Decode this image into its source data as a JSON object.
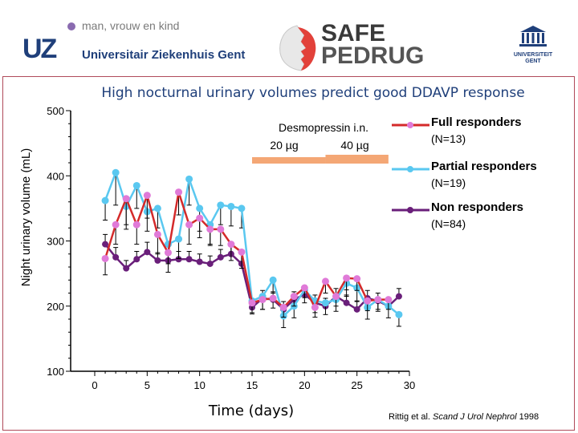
{
  "header": {
    "tagline": "man, vrouw en kind",
    "uz_logo": "UZ",
    "hospital_name": "Universitair Ziekenhuis Gent",
    "safe_logo_line1": "SAFE",
    "safe_logo_line2": "PEDRUG",
    "ugent_line1": "UNIVERSITEIT",
    "ugent_line2": "GENT"
  },
  "citation": {
    "authors": "Rittig et al.",
    "journal": "Scand J Urol Nephrol",
    "year": "1998"
  },
  "chart_data": {
    "type": "line",
    "title": "High nocturnal urinary volumes predict good DDAVP response",
    "xlabel": "Time (days)",
    "ylabel": "Night urinary volume (mL)",
    "xlim": [
      0,
      30
    ],
    "ylim": [
      100,
      500
    ],
    "xticks": [
      0,
      5,
      10,
      15,
      20,
      25,
      30
    ],
    "yticks": [
      100,
      200,
      300,
      400,
      500
    ],
    "annotation": {
      "title": "Desmopressin i.n.",
      "dose1": "20 µg",
      "dose2": "40 µg",
      "dose1_days": [
        15,
        22
      ],
      "dose2_days": [
        22,
        28
      ]
    },
    "legend_position": "top-right",
    "colors": {
      "full": "#d42a2a",
      "full_marker": "#e07ad8",
      "partial": "#5ac8f0",
      "non": "#6a1f7a",
      "dose_bar": "#f4a775",
      "title": "#1f3f7a",
      "frame": "#b04a5a"
    },
    "series": [
      {
        "name": "Full responders (N=13)",
        "x": [
          1,
          2,
          3,
          4,
          5,
          6,
          7,
          8,
          9,
          10,
          11,
          12,
          13,
          14,
          15,
          16,
          17,
          18,
          19,
          20,
          21,
          22,
          23,
          24,
          25,
          26,
          27,
          28
        ],
        "values": [
          273,
          325,
          365,
          325,
          370,
          310,
          282,
          375,
          325,
          335,
          318,
          318,
          295,
          283,
          205,
          210,
          212,
          198,
          215,
          228,
          198,
          238,
          215,
          243,
          242,
          208,
          210,
          210
        ],
        "errors": [
          25,
          30,
          40,
          30,
          35,
          30,
          30,
          35,
          30,
          30,
          25,
          25,
          25,
          25,
          15,
          15,
          15,
          15,
          15,
          15,
          15,
          18,
          15,
          18,
          18,
          15,
          15,
          15
        ]
      },
      {
        "name": "Partial responders (N=19)",
        "x": [
          1,
          2,
          3,
          4,
          5,
          6,
          7,
          8,
          9,
          10,
          11,
          12,
          13,
          14,
          15,
          16,
          17,
          18,
          19,
          20,
          21,
          22,
          23,
          24,
          25,
          26,
          27,
          28,
          29
        ],
        "values": [
          362,
          405,
          353,
          385,
          345,
          350,
          295,
          303,
          395,
          350,
          325,
          355,
          353,
          350,
          208,
          215,
          240,
          185,
          200,
          225,
          208,
          205,
          210,
          235,
          228,
          198,
          210,
          200,
          187
        ],
        "errors": [
          30,
          50,
          35,
          35,
          30,
          30,
          30,
          30,
          40,
          35,
          30,
          30,
          30,
          30,
          20,
          20,
          20,
          18,
          18,
          20,
          18,
          18,
          18,
          20,
          20,
          18,
          18,
          18,
          18
        ]
      },
      {
        "name": "Non responders (N=84)",
        "x": [
          1,
          2,
          3,
          4,
          5,
          6,
          7,
          8,
          9,
          10,
          11,
          12,
          13,
          14,
          15,
          16,
          17,
          18,
          19,
          20,
          21,
          22,
          23,
          24,
          25,
          26,
          27,
          28,
          29
        ],
        "values": [
          295,
          275,
          258,
          272,
          283,
          270,
          270,
          272,
          272,
          268,
          265,
          275,
          280,
          265,
          198,
          212,
          210,
          195,
          210,
          218,
          205,
          200,
          215,
          205,
          195,
          212,
          208,
          200,
          215
        ],
        "errors": [
          15,
          15,
          12,
          12,
          15,
          12,
          12,
          12,
          12,
          12,
          12,
          12,
          15,
          15,
          12,
          12,
          12,
          12,
          12,
          12,
          12,
          12,
          12,
          12,
          12,
          12,
          12,
          12,
          12
        ]
      }
    ]
  }
}
